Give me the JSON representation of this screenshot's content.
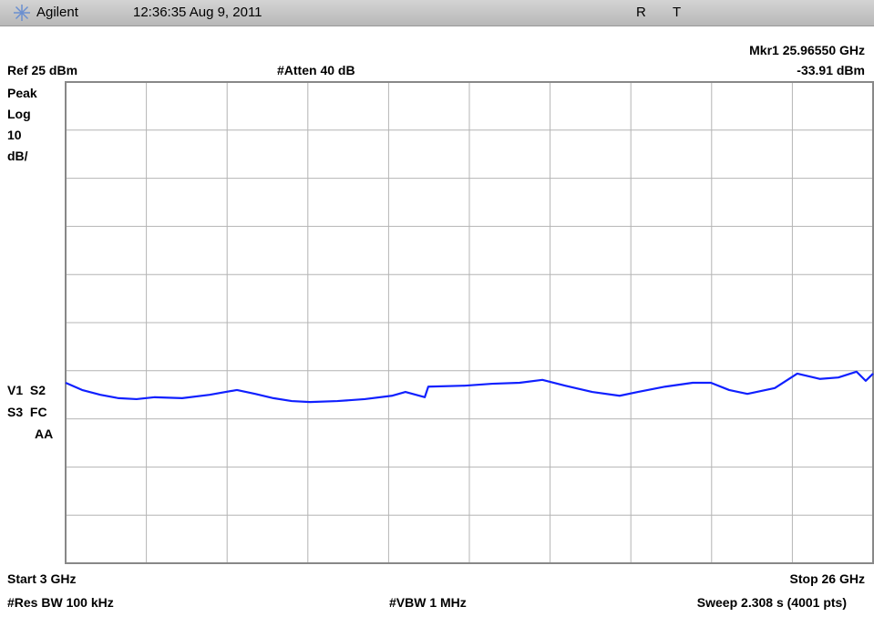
{
  "header": {
    "brand": "Agilent",
    "timestamp": "12:36:35 Aug 9, 2011",
    "flag1": "R",
    "flag2": "T"
  },
  "marker": {
    "frequency_label": "Mkr1 25.96550 GHz",
    "amplitude_label": "-33.91 dBm"
  },
  "settings": {
    "reference": "Ref 25 dBm",
    "attenuation": "#Atten 40 dB",
    "detector": "Peak",
    "scale_type": "Log",
    "scale_value": "10",
    "scale_unit": "dB/",
    "status1": "V1  S2",
    "status2": "S3  FC",
    "status3": "AA"
  },
  "footer": {
    "start": "Start 3 GHz",
    "stop": "Stop 26 GHz",
    "rbw": "#Res BW 100 kHz",
    "vbw": "#VBW 1 MHz",
    "sweep": "Sweep 2.308 s (4001 pts)"
  },
  "chart_data": {
    "type": "line",
    "xlim": [
      3,
      26
    ],
    "ylim": [
      -75,
      25
    ],
    "xticks": [
      3,
      5.3,
      7.6,
      9.9,
      12.2,
      14.5,
      16.8,
      19.1,
      21.4,
      23.7,
      26
    ],
    "yticks": [
      -75,
      -65,
      -55,
      -45,
      -35,
      -25,
      -15,
      -5,
      5,
      15,
      25
    ],
    "grid": true,
    "series": [
      {
        "color": "#1020ff",
        "x": [
          3.0,
          3.47,
          3.99,
          4.51,
          5.02,
          5.54,
          6.32,
          7.1,
          7.88,
          8.4,
          8.92,
          9.44,
          9.96,
          10.74,
          11.52,
          12.29,
          12.68,
          13.23,
          13.33,
          14.37,
          15.15,
          15.93,
          16.58,
          17.23,
          18.0,
          18.78,
          19.3,
          20.08,
          20.86,
          21.38,
          21.9,
          22.42,
          23.2,
          23.84,
          24.49,
          25.01,
          25.53,
          25.79,
          26.0
        ],
        "values": [
          -37.5,
          -39.0,
          -40.0,
          -40.7,
          -40.9,
          -40.5,
          -40.7,
          -40.0,
          -39.0,
          -39.8,
          -40.7,
          -41.3,
          -41.5,
          -41.3,
          -40.9,
          -40.2,
          -39.4,
          -40.5,
          -38.3,
          -38.1,
          -37.7,
          -37.5,
          -36.9,
          -38.1,
          -39.4,
          -40.2,
          -39.4,
          -38.3,
          -37.5,
          -37.5,
          -39.0,
          -39.8,
          -38.6,
          -35.6,
          -36.7,
          -36.4,
          -35.2,
          -37.1,
          -35.6
        ]
      }
    ]
  }
}
